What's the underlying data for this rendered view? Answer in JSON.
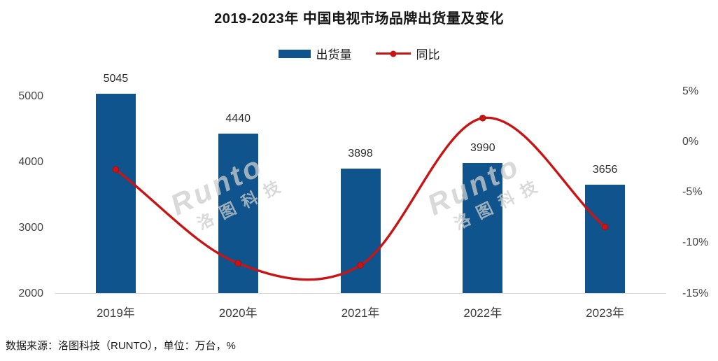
{
  "title": "2019-2023年 中国电视市场品牌出货量及变化",
  "legend": {
    "bar_label": "出货量",
    "line_label": "同比"
  },
  "source_note": "数据来源：洛图科技（RUNTO），单位：万台，%",
  "watermark": {
    "brand": "Runto",
    "cn": "洛图科技"
  },
  "colors": {
    "bar": "#0F548C",
    "line": "#C81414",
    "axis_line": "#DBDBDB",
    "tick_text": "#454545",
    "label_text": "#2E2E2E",
    "title_text": "#141414",
    "watermark_text": "#CDCDCD"
  },
  "chart_data": {
    "type": "bar+line",
    "title": "2019-2023年 中国电视市场品牌出货量及变化",
    "categories": [
      "2019年",
      "2020年",
      "2021年",
      "2022年",
      "2023年"
    ],
    "series": [
      {
        "name": "出货量",
        "type": "bar",
        "axis": "left",
        "unit": "万台",
        "values": [
          5045,
          4440,
          3898,
          3990,
          3656
        ]
      },
      {
        "name": "同比",
        "type": "line",
        "axis": "right",
        "unit": "%",
        "values": [
          -2.7,
          -12.0,
          -12.2,
          2.4,
          -8.4
        ]
      }
    ],
    "left_axis": {
      "min": 2000,
      "max": 5000,
      "ticks": [
        5000,
        4000,
        3000,
        2000
      ]
    },
    "right_axis": {
      "min": -15,
      "max": 5,
      "ticks": [
        {
          "label": "5%",
          "value": 5
        },
        {
          "label": "0%",
          "value": 0
        },
        {
          "label": "-5%",
          "value": -5
        },
        {
          "label": "-10%",
          "value": -10
        },
        {
          "label": "-15%",
          "value": -15
        }
      ]
    },
    "grid": false,
    "legend_position": "top"
  }
}
